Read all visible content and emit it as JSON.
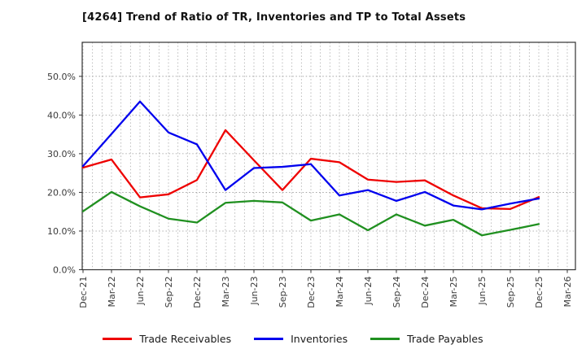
{
  "title": "[4264]  Trend of Ratio of TR, Inventories and TP to Total Assets",
  "chart_data": {
    "type": "line",
    "categories": [
      "Dec-21",
      "Mar-22",
      "Jun-22",
      "Sep-22",
      "Dec-22",
      "Mar-23",
      "Jun-23",
      "Sep-23",
      "Dec-23",
      "Mar-24",
      "Jun-24",
      "Sep-24",
      "Dec-24",
      "Mar-25",
      "Jun-25",
      "Sep-25",
      "Dec-25",
      "Mar-26"
    ],
    "series": [
      {
        "name": "Trade Receivables",
        "color": "#ee0000",
        "values": [
          26.4,
          28.5,
          18.7,
          19.5,
          23.2,
          36.1,
          28.3,
          20.6,
          28.7,
          27.8,
          23.3,
          22.7,
          23.1,
          19.2,
          15.9,
          15.7,
          18.8
        ]
      },
      {
        "name": "Inventories",
        "color": "#0000ee",
        "values": [
          26.8,
          35.1,
          43.5,
          35.5,
          32.4,
          20.6,
          26.3,
          26.6,
          27.3,
          19.2,
          20.6,
          17.8,
          20.1,
          16.6,
          15.6,
          17.1,
          18.4
        ]
      },
      {
        "name": "Trade Payables",
        "color": "#209020",
        "values": [
          15.1,
          20.1,
          16.4,
          13.2,
          12.2,
          17.3,
          17.8,
          17.4,
          12.7,
          14.3,
          10.2,
          14.3,
          11.4,
          12.9,
          8.9,
          10.3,
          11.8
        ]
      }
    ],
    "title": "[4264]  Trend of Ratio of TR, Inventories and TP to Total Assets",
    "xlabel": "",
    "ylabel": "",
    "y_ticks": [
      0,
      10,
      20,
      30,
      40,
      50
    ],
    "y_tick_labels": [
      "0.0%",
      "10.0%",
      "20.0%",
      "30.0%",
      "40.0%",
      "50.0%"
    ],
    "ylim": [
      0,
      58.8
    ],
    "x_minor_gridlines": "monthly",
    "grid": "dotted gray, horizontal at 10% steps, vertical monthly",
    "legend_position": "bottom center",
    "legend": [
      "Trade Receivables",
      "Inventories",
      "Trade Payables"
    ]
  }
}
